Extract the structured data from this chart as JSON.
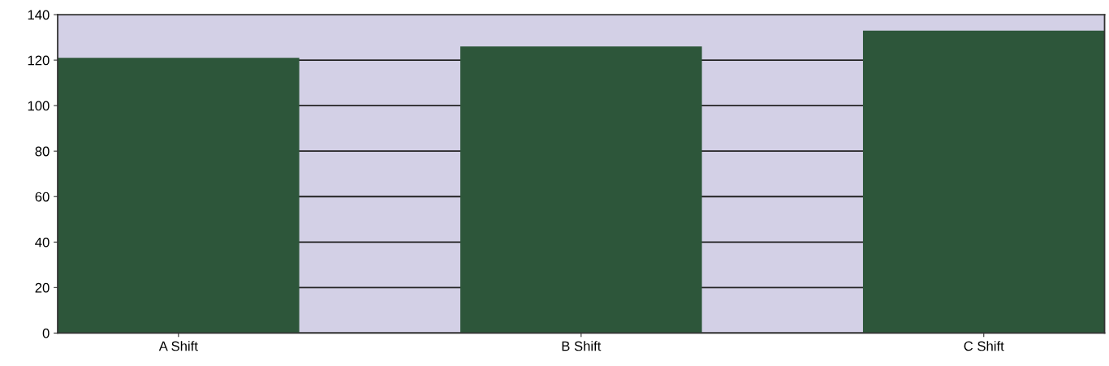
{
  "chart_data": {
    "type": "bar",
    "categories": [
      "A Shift",
      "B Shift",
      "C Shift"
    ],
    "values": [
      121,
      126,
      133
    ],
    "color": "#2d563a",
    "ylim": [
      0,
      140
    ],
    "yticks": [
      0,
      20,
      40,
      60,
      80,
      100,
      120,
      140
    ],
    "grid": "y"
  }
}
